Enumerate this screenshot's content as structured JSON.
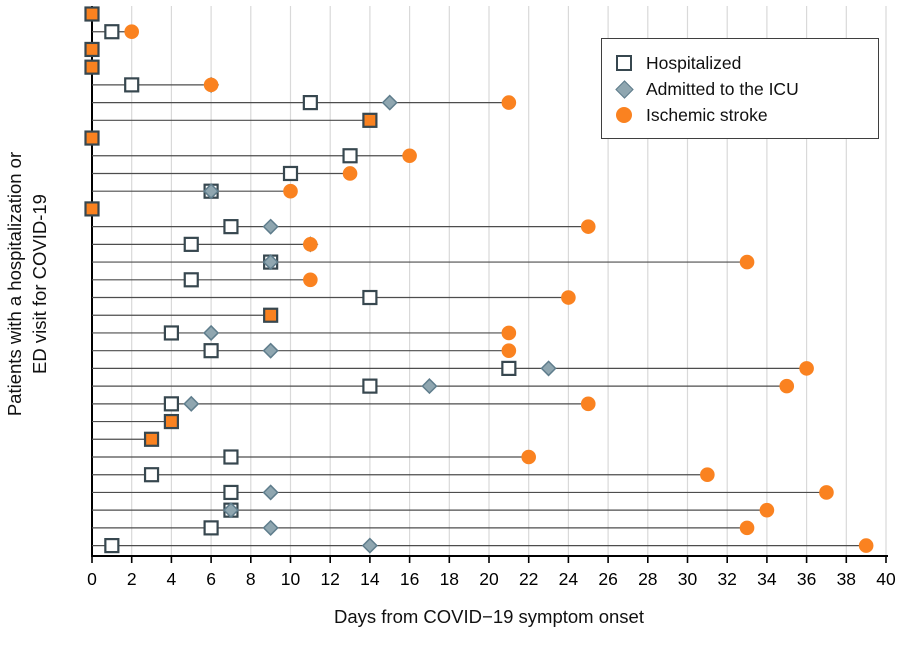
{
  "colors": {
    "orange": "#FA8220",
    "diamond_fill": "#8FA6B0",
    "diamond_stroke": "#5F7D8C",
    "square_stroke": "#37474F",
    "square_fill": "#FFFFFF",
    "timeline_line": "#4d4d4d",
    "grid": "#d9d9d9",
    "axis": "#000000"
  },
  "legend": {
    "items": [
      {
        "key": "hospitalized",
        "label": "Hospitalized"
      },
      {
        "key": "icu",
        "label": "Admitted to the ICU"
      },
      {
        "key": "ischemic_stroke",
        "label": "Ischemic stroke"
      }
    ]
  },
  "chart_data": {
    "type": "scatter",
    "title": "",
    "xlabel": "Days from COVID−19 symptom onset",
    "ylabel": "Patients with a hospitalization or ED visit for COVID-19",
    "ylabel_line1": "Patients with a hospitalization or",
    "ylabel_line2": "ED visit for  COVID-19",
    "xlim": [
      0,
      40
    ],
    "x_ticks": [
      0,
      2,
      4,
      6,
      8,
      10,
      12,
      14,
      16,
      18,
      20,
      22,
      24,
      26,
      28,
      30,
      32,
      34,
      36,
      38,
      40
    ],
    "grid": "vertical",
    "legend_position": "top-right",
    "marker_legend": {
      "hospitalized": "open square",
      "icu": "gray diamond",
      "ischemic_stroke": "orange circle"
    },
    "patients": [
      {
        "hospitalized": 0,
        "icu": null,
        "ischemic_stroke": 0
      },
      {
        "hospitalized": 1,
        "icu": null,
        "ischemic_stroke": 2
      },
      {
        "hospitalized": 0,
        "icu": null,
        "ischemic_stroke": 0
      },
      {
        "hospitalized": 0,
        "icu": null,
        "ischemic_stroke": 0
      },
      {
        "hospitalized": 2,
        "icu": 6,
        "ischemic_stroke": 6
      },
      {
        "hospitalized": 11,
        "icu": 15,
        "ischemic_stroke": 21
      },
      {
        "hospitalized": 14,
        "icu": null,
        "ischemic_stroke": 14
      },
      {
        "hospitalized": 0,
        "icu": null,
        "ischemic_stroke": 0
      },
      {
        "hospitalized": 13,
        "icu": null,
        "ischemic_stroke": 16
      },
      {
        "hospitalized": 10,
        "icu": null,
        "ischemic_stroke": 13
      },
      {
        "hospitalized": 6,
        "icu": 6,
        "ischemic_stroke": 10
      },
      {
        "hospitalized": 0,
        "icu": null,
        "ischemic_stroke": 0
      },
      {
        "hospitalized": 7,
        "icu": 9,
        "ischemic_stroke": 25
      },
      {
        "hospitalized": 5,
        "icu": 11,
        "ischemic_stroke": 11
      },
      {
        "hospitalized": 9,
        "icu": 9,
        "ischemic_stroke": 33
      },
      {
        "hospitalized": 5,
        "icu": null,
        "ischemic_stroke": 11
      },
      {
        "hospitalized": 14,
        "icu": null,
        "ischemic_stroke": 24
      },
      {
        "hospitalized": 9,
        "icu": null,
        "ischemic_stroke": 9
      },
      {
        "hospitalized": 4,
        "icu": 6,
        "ischemic_stroke": 21
      },
      {
        "hospitalized": 6,
        "icu": 9,
        "ischemic_stroke": 21
      },
      {
        "hospitalized": 21,
        "icu": 23,
        "ischemic_stroke": 36
      },
      {
        "hospitalized": 14,
        "icu": 17,
        "ischemic_stroke": 35
      },
      {
        "hospitalized": 4,
        "icu": 5,
        "ischemic_stroke": 25
      },
      {
        "hospitalized": 4,
        "icu": null,
        "ischemic_stroke": 4
      },
      {
        "hospitalized": 3,
        "icu": null,
        "ischemic_stroke": 3
      },
      {
        "hospitalized": 7,
        "icu": null,
        "ischemic_stroke": 22
      },
      {
        "hospitalized": 3,
        "icu": null,
        "ischemic_stroke": 31
      },
      {
        "hospitalized": 7,
        "icu": 9,
        "ischemic_stroke": 37
      },
      {
        "hospitalized": 7,
        "icu": 7,
        "ischemic_stroke": 34
      },
      {
        "hospitalized": 6,
        "icu": 9,
        "ischemic_stroke": 33
      },
      {
        "hospitalized": 1,
        "icu": 14,
        "ischemic_stroke": 39
      }
    ]
  }
}
